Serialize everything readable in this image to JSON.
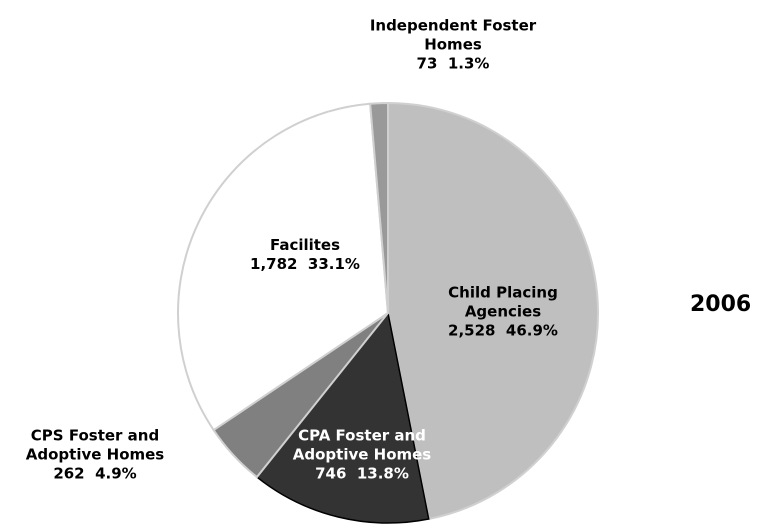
{
  "chart_data": {
    "type": "pie",
    "title": "2006",
    "categories": [
      "Child Placing Agencies",
      "CPA Foster and Adoptive Homes",
      "CPS Foster and Adoptive Homes",
      "Facilites",
      "Independent Foster Homes"
    ],
    "values": [
      2528,
      746,
      262,
      1782,
      73
    ],
    "value_labels": [
      "2,528",
      "746",
      "262",
      "1,782",
      "73"
    ],
    "percents": [
      46.9,
      13.8,
      4.9,
      33.1,
      1.3
    ],
    "percent_labels": [
      "46.9%",
      "13.8%",
      "4.9%",
      "33.1%",
      "1.3%"
    ],
    "colors": [
      "#bfbfbf",
      "#333333",
      "#808080",
      "#ffffff",
      "#999999"
    ]
  }
}
